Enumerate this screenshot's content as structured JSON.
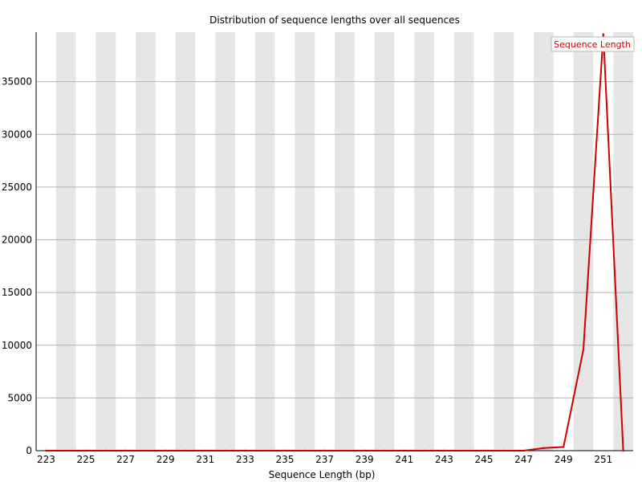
{
  "chart_data": {
    "type": "line",
    "title": "Distribution of sequence lengths over all sequences",
    "xlabel": "Sequence Length (bp)",
    "ylabel": "",
    "x": [
      223,
      224,
      225,
      226,
      227,
      228,
      229,
      230,
      231,
      232,
      233,
      234,
      235,
      236,
      237,
      238,
      239,
      240,
      241,
      242,
      243,
      244,
      245,
      246,
      247,
      248,
      249,
      250,
      251,
      252
    ],
    "x_tick_labels": [
      "223",
      "225",
      "227",
      "229",
      "231",
      "233",
      "235",
      "237",
      "239",
      "241",
      "243",
      "245",
      "247",
      "249",
      "251"
    ],
    "series": [
      {
        "name": "Sequence Length",
        "color": "#cc0000",
        "values": [
          0,
          0,
          0,
          0,
          0,
          0,
          0,
          0,
          0,
          0,
          0,
          0,
          0,
          0,
          0,
          0,
          0,
          0,
          0,
          0,
          0,
          0,
          0,
          0,
          0,
          250,
          350,
          9600,
          39500,
          0
        ]
      }
    ],
    "ylim": [
      0,
      39700
    ],
    "y_ticks": [
      0,
      5000,
      10000,
      15000,
      20000,
      25000,
      30000,
      35000
    ],
    "y_tick_labels": [
      "0",
      "5000",
      "10000",
      "15000",
      "20000",
      "25000",
      "30000",
      "35000"
    ],
    "legend": "top-right",
    "grid": true,
    "colors": {
      "band": "#e6e6e6",
      "gridline": "#b4b4b4",
      "line": "#cc0000",
      "axis": "#000000"
    }
  }
}
